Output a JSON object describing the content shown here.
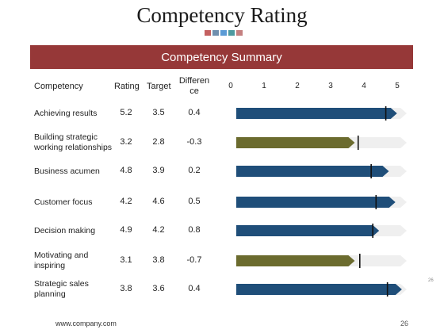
{
  "slide": {
    "title": "Competency Rating",
    "square_colors": [
      "#c46060",
      "#6f8fae",
      "#5b9bd5",
      "#4d9aa0",
      "#c48080"
    ],
    "banner": "Competency Summary",
    "footer_url": "www.company.com",
    "page_number": "26",
    "side_page_number": "26"
  },
  "table": {
    "headers": {
      "competency": "Competency",
      "rating": "Rating",
      "target": "Target",
      "difference_line1": "Differen",
      "difference_line2": "ce"
    },
    "rows": [
      {
        "label": "Achieving results",
        "rating": "5.2",
        "target": "3.5",
        "difference": "0.4",
        "bar": 4.75,
        "marker": 4.6,
        "color": "#1f4e79"
      },
      {
        "label": "Building strategic working relationships",
        "rating": "3.2",
        "target": "2.8",
        "difference": "-0.3",
        "bar": 3.45,
        "marker": 3.75,
        "color": "#6b6b2e"
      },
      {
        "label": "Business acumen",
        "rating": "4.8",
        "target": "3.9",
        "difference": "0.2",
        "bar": 4.5,
        "marker": 4.15,
        "color": "#1f4e79"
      },
      {
        "label": "Customer focus",
        "rating": "4.2",
        "target": "4.6",
        "difference": "0.5",
        "bar": 4.7,
        "marker": 4.3,
        "color": "#1f4e79"
      },
      {
        "label": "Decision making",
        "rating": "4.9",
        "target": "4.2",
        "difference": "0.8",
        "bar": 4.2,
        "marker": 4.2,
        "color": "#1f4e79"
      },
      {
        "label": "Motivating and inspiring",
        "rating": "3.1",
        "target": "3.8",
        "difference": "-0.7",
        "bar": 3.45,
        "marker": 3.8,
        "color": "#6b6b2e"
      },
      {
        "label": "Strategic sales planning",
        "rating": "3.8",
        "target": "3.6",
        "difference": "0.4",
        "bar": 4.9,
        "marker": 4.65,
        "color": "#1f4e79"
      }
    ]
  },
  "chart_data": {
    "type": "bar",
    "ticks": [
      "0",
      "1",
      "2",
      "3",
      "4",
      "5"
    ],
    "xlim": [
      0,
      5
    ],
    "orientation": "horizontal",
    "track_color": "#efefef"
  }
}
